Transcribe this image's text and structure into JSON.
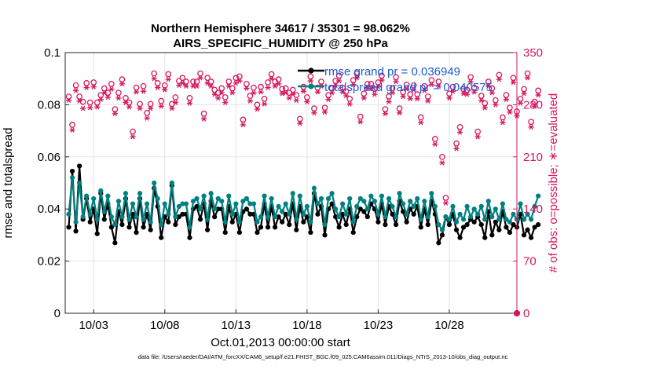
{
  "chart_data": {
    "type": "line",
    "title_line1": "Northern Hemisphere 34617 / 35301 = 98.062%",
    "title_line2": "AIRS_SPECIFIC_HUMIDITY @ 250 hPa",
    "xlabel": "Oct.01,2013 00:00:00 start",
    "ylabel": "rmse and totalspread",
    "ylabel_right": "# of obs: o=possible; ∗=evaluated",
    "footer": "data file: /Users/raeder/DAI/ATM_forcXX/CAM6_setup/f.e21.FHIST_BGC.f09_025.CAM6assim.011/Diags_NTrS_2013-10/obs_diag_output.nc",
    "x_ticks": [
      "10/03",
      "10/08",
      "10/13",
      "10/18",
      "10/23",
      "10/28"
    ],
    "x_tick_days": [
      3,
      8,
      13,
      18,
      23,
      28
    ],
    "xlim": [
      1,
      32.75
    ],
    "ylim": [
      0,
      0.1
    ],
    "y_ticks": [
      "0",
      "0.02",
      "0.04",
      "0.06",
      "0.08",
      "0.1"
    ],
    "y_tick_values": [
      0,
      0.02,
      0.04,
      0.06,
      0.08,
      0.1
    ],
    "ylim_right": [
      0,
      350
    ],
    "y_ticks_right": [
      "0",
      "70",
      "140",
      "210",
      "280",
      "350"
    ],
    "y_tick_values_right": [
      0,
      70,
      140,
      210,
      280,
      350
    ],
    "grid": true,
    "legend_position": "top-right",
    "series": [
      {
        "name": "rmse grand pr = 0.036949",
        "color": "#000000",
        "marker": "filled-circle",
        "axis": "left",
        "values": [
          0.033,
          0.0545,
          0.0315,
          0.0565,
          0.036,
          0.044,
          0.035,
          0.04,
          0.0305,
          0.046,
          0.036,
          0.042,
          0.033,
          0.027,
          0.039,
          0.034,
          0.044,
          0.033,
          0.038,
          0.031,
          0.044,
          0.033,
          0.038,
          0.032,
          0.048,
          0.041,
          0.029,
          0.037,
          0.035,
          0.049,
          0.034,
          0.037,
          0.038,
          0.038,
          0.029,
          0.04,
          0.041,
          0.036,
          0.042,
          0.032,
          0.043,
          0.037,
          0.04,
          0.04,
          0.031,
          0.041,
          0.035,
          0.038,
          0.031,
          0.039,
          0.04,
          0.038,
          0.038,
          0.031,
          0.033,
          0.042,
          0.033,
          0.041,
          0.033,
          0.037,
          0.035,
          0.038,
          0.034,
          0.042,
          0.032,
          0.041,
          0.035,
          0.037,
          0.031,
          0.046,
          0.038,
          0.041,
          0.03,
          0.04,
          0.042,
          0.037,
          0.033,
          0.038,
          0.034,
          0.04,
          0.031,
          0.037,
          0.04,
          0.039,
          0.037,
          0.042,
          0.04,
          0.035,
          0.042,
          0.034,
          0.041,
          0.038,
          0.034,
          0.043,
          0.039,
          0.035,
          0.04,
          0.038,
          0.041,
          0.033,
          0.04,
          0.034,
          0.043,
          0.038,
          0.027,
          0.03,
          0.037,
          0.034,
          0.038,
          0.032,
          0.029,
          0.033,
          0.034,
          0.036,
          0.035,
          0.037,
          0.034,
          0.029,
          0.039,
          0.03,
          0.035,
          0.032,
          0.039,
          0.033,
          0.031,
          0.034,
          0.033,
          0.038,
          0.03,
          0.032,
          0.029,
          0.033,
          0.034
        ]
      },
      {
        "name": "totalspread grand pr = 0.040575",
        "color": "#008080",
        "marker": "filled-circle",
        "axis": "left",
        "values": [
          0.038,
          0.052,
          0.035,
          0.05,
          0.037,
          0.045,
          0.038,
          0.044,
          0.036,
          0.047,
          0.039,
          0.045,
          0.037,
          0.034,
          0.043,
          0.037,
          0.046,
          0.036,
          0.042,
          0.037,
          0.046,
          0.036,
          0.042,
          0.035,
          0.05,
          0.044,
          0.034,
          0.042,
          0.038,
          0.05,
          0.037,
          0.041,
          0.042,
          0.042,
          0.033,
          0.043,
          0.044,
          0.04,
          0.045,
          0.036,
          0.046,
          0.04,
          0.044,
          0.043,
          0.035,
          0.045,
          0.038,
          0.042,
          0.035,
          0.043,
          0.044,
          0.042,
          0.042,
          0.035,
          0.037,
          0.045,
          0.037,
          0.044,
          0.037,
          0.041,
          0.039,
          0.042,
          0.038,
          0.046,
          0.036,
          0.045,
          0.038,
          0.041,
          0.035,
          0.048,
          0.042,
          0.044,
          0.034,
          0.044,
          0.046,
          0.04,
          0.037,
          0.042,
          0.038,
          0.044,
          0.035,
          0.041,
          0.044,
          0.043,
          0.04,
          0.045,
          0.043,
          0.038,
          0.045,
          0.037,
          0.044,
          0.041,
          0.037,
          0.046,
          0.042,
          0.038,
          0.043,
          0.041,
          0.044,
          0.036,
          0.043,
          0.037,
          0.046,
          0.041,
          0.034,
          0.032,
          0.037,
          0.036,
          0.041,
          0.035,
          0.038,
          0.036,
          0.041,
          0.037,
          0.04,
          0.038,
          0.041,
          0.036,
          0.043,
          0.037,
          0.04,
          0.036,
          0.042,
          0.036,
          0.035,
          0.038,
          0.036,
          0.042,
          0.036,
          0.038,
          0.036,
          0.041,
          0.045
        ]
      },
      {
        "name": "possible",
        "color": "#d6175e",
        "marker": "open-circle",
        "axis": "right",
        "values": [
          291,
          253,
          306,
          291,
          284,
          309,
          283,
          310,
          283,
          293,
          302,
          296,
          308,
          274,
          296,
          314,
          289,
          283,
          244,
          303,
          281,
          305,
          269,
          281,
          322,
          309,
          285,
          306,
          321,
          281,
          290,
          312,
          316,
          311,
          289,
          311,
          311,
          322,
          268,
          316,
          311,
          300,
          296,
          302,
          290,
          311,
          302,
          316,
          318,
          260,
          308,
          292,
          303,
          280,
          304,
          288,
          310,
          321,
          311,
          314,
          301,
          302,
          296,
          300,
          293,
          261,
          304,
          290,
          318,
          275,
          303,
          311,
          276,
          293,
          302,
          312,
          319,
          303,
          298,
          288,
          313,
          322,
          264,
          295,
          308,
          308,
          301,
          310,
          319,
          274,
          291,
          302,
          317,
          275,
          297,
          307,
          294,
          306,
          294,
          263,
          305,
          291,
          313,
          234,
          311,
          210,
          155,
          295,
          304,
          228,
          250,
          301,
          300,
          317,
          303,
          244,
          292,
          282,
          311,
          302,
          286,
          320,
          263,
          293,
          276,
          316,
          271,
          288,
          301,
          322,
          257,
          284,
          299
        ]
      },
      {
        "name": "evaluated",
        "color": "#d6175e",
        "marker": "asterisk",
        "axis": "right",
        "values": [
          286,
          246,
          299,
          285,
          275,
          303,
          276,
          304,
          277,
          287,
          296,
          290,
          301,
          268,
          289,
          308,
          283,
          277,
          237,
          297,
          275,
          298,
          262,
          275,
          315,
          303,
          278,
          300,
          314,
          275,
          283,
          306,
          309,
          305,
          282,
          305,
          305,
          316,
          261,
          309,
          305,
          294,
          289,
          296,
          283,
          305,
          296,
          309,
          312,
          253,
          302,
          285,
          296,
          274,
          297,
          281,
          303,
          315,
          305,
          308,
          295,
          296,
          289,
          294,
          286,
          255,
          298,
          284,
          312,
          269,
          297,
          305,
          270,
          287,
          296,
          306,
          312,
          297,
          292,
          281,
          307,
          316,
          257,
          289,
          302,
          302,
          294,
          304,
          313,
          268,
          284,
          296,
          311,
          269,
          291,
          301,
          288,
          300,
          288,
          256,
          299,
          285,
          307,
          227,
          305,
          202,
          148,
          289,
          298,
          221,
          243,
          295,
          294,
          311,
          297,
          237,
          286,
          276,
          305,
          296,
          280,
          314,
          256,
          287,
          270,
          310,
          265,
          282,
          295,
          316,
          250,
          278,
          293
        ]
      }
    ]
  }
}
